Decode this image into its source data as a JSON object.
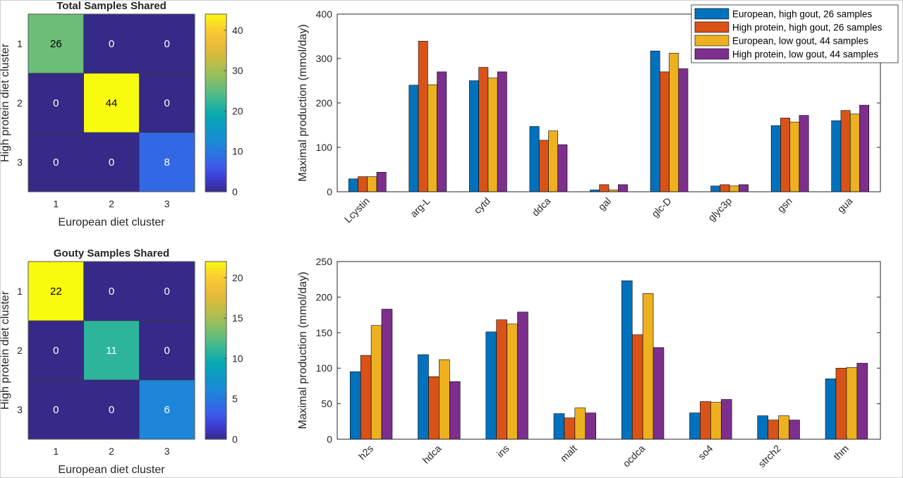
{
  "colors": {
    "series": [
      "#0072BD",
      "#D95319",
      "#EDB120",
      "#7E2F8E"
    ],
    "parula": [
      "#352A87",
      "#3E3AD0",
      "#3C5AE8",
      "#2C74E1",
      "#1B8AD6",
      "#1099C6",
      "#06A8B3",
      "#2DB59B",
      "#5FBC7F",
      "#8DBF62",
      "#B6BE4C",
      "#D9BA3C",
      "#F2BF38",
      "#FAD12F",
      "#F9FB0E"
    ]
  },
  "chart_data": [
    {
      "type": "heatmap",
      "title": "Total Samples Shared",
      "xlabel": "European diet cluster",
      "ylabel": "High protein diet cluster",
      "x_categories": [
        "1",
        "2",
        "3"
      ],
      "y_categories": [
        "1",
        "2",
        "3"
      ],
      "values": [
        [
          26,
          0,
          0
        ],
        [
          0,
          44,
          0
        ],
        [
          0,
          0,
          8
        ]
      ],
      "colorbar": {
        "range": [
          0,
          44
        ],
        "ticks": [
          0,
          10,
          20,
          30,
          40
        ]
      }
    },
    {
      "type": "bar",
      "title": "",
      "xlabel": "",
      "ylabel": "Maximal production (mmol/day)",
      "ylim": [
        0,
        400
      ],
      "yticks": [
        0,
        100,
        200,
        300,
        400
      ],
      "categories": [
        "Lcystin",
        "arg-L",
        "cytd",
        "ddca",
        "gal",
        "glc-D",
        "glyc3p",
        "gsn",
        "gua"
      ],
      "series": [
        {
          "name": "European, high gout,  26 samples",
          "values": [
            29,
            240,
            250,
            147,
            4,
            317,
            13,
            149,
            160
          ]
        },
        {
          "name": "High protein, high gout,  26 samples",
          "values": [
            34,
            339,
            280,
            116,
            16,
            270,
            16,
            166,
            183
          ]
        },
        {
          "name": "European, low gout,  44 samples",
          "values": [
            34,
            241,
            256,
            137,
            4,
            312,
            13,
            157,
            175
          ]
        },
        {
          "name": "High protein, low gout,  44 samples",
          "values": [
            44,
            270,
            270,
            106,
            16,
            277,
            16,
            172,
            195
          ]
        }
      ],
      "legend": "top-right"
    },
    {
      "type": "heatmap",
      "title": "Gouty Samples Shared",
      "xlabel": "European diet cluster",
      "ylabel": "High protein diet cluster",
      "x_categories": [
        "1",
        "2",
        "3"
      ],
      "y_categories": [
        "1",
        "2",
        "3"
      ],
      "values": [
        [
          22,
          0,
          0
        ],
        [
          0,
          11,
          0
        ],
        [
          0,
          0,
          6
        ]
      ],
      "colorbar": {
        "range": [
          0,
          22
        ],
        "ticks": [
          0,
          5,
          10,
          15,
          20
        ]
      }
    },
    {
      "type": "bar",
      "title": "",
      "xlabel": "",
      "ylabel": "Maximal production (mmol/day)",
      "ylim": [
        0,
        250
      ],
      "yticks": [
        0,
        50,
        100,
        150,
        200,
        250
      ],
      "categories": [
        "h2s",
        "hdca",
        "ins",
        "malt",
        "ocdca",
        "so4",
        "strch2",
        "thm"
      ],
      "series": [
        {
          "name": "European, high gout,  26 samples",
          "values": [
            95,
            119,
            151,
            36,
            223,
            37,
            33,
            85
          ]
        },
        {
          "name": "High protein, high gout,  26 samples",
          "values": [
            118,
            88,
            168,
            30,
            147,
            53,
            27,
            100
          ]
        },
        {
          "name": "European, low gout,  44 samples",
          "values": [
            160,
            112,
            162,
            44,
            205,
            52,
            33,
            101
          ]
        },
        {
          "name": "High protein, low gout,  44 samples",
          "values": [
            183,
            81,
            179,
            37,
            129,
            56,
            27,
            107
          ]
        }
      ]
    }
  ]
}
